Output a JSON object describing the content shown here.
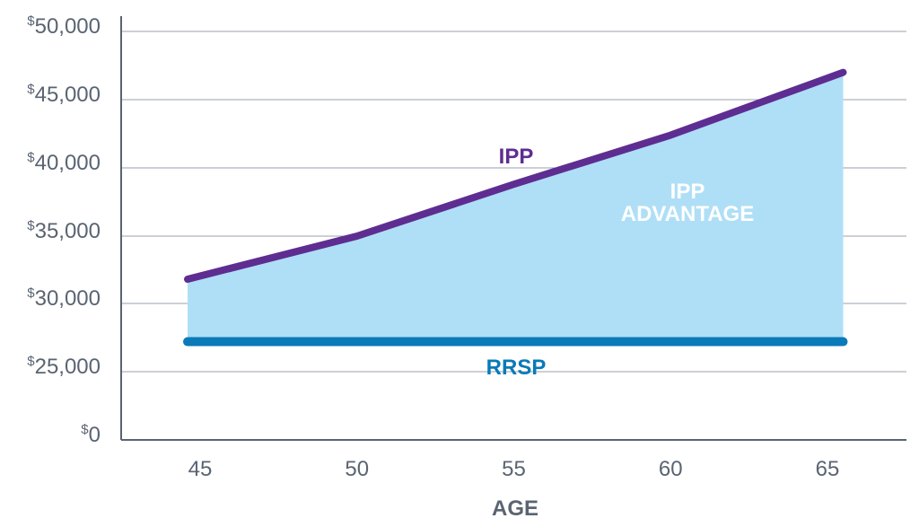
{
  "chart_data": {
    "type": "area",
    "xlabel": "AGE",
    "ylabel": "",
    "title": "",
    "x_ticks": [
      45,
      50,
      55,
      60,
      65
    ],
    "y_ticks": [
      {
        "value": 0,
        "label": "0"
      },
      {
        "value": 25000,
        "label": "25,000"
      },
      {
        "value": 30000,
        "label": "30,000"
      },
      {
        "value": 35000,
        "label": "35,000"
      },
      {
        "value": 40000,
        "label": "40,000"
      },
      {
        "value": 45000,
        "label": "45,000"
      },
      {
        "value": 50000,
        "label": "50,000"
      }
    ],
    "currency_symbol": "$",
    "grid": true,
    "series": [
      {
        "name": "IPP",
        "color": "#5e2d91",
        "points": [
          [
            44.6,
            31800
          ],
          [
            50,
            35000
          ],
          [
            55,
            38800
          ],
          [
            60,
            42400
          ],
          [
            65.5,
            47000
          ]
        ]
      },
      {
        "name": "RRSP",
        "color": "#0a7ab8",
        "points": [
          [
            44.6,
            27200
          ],
          [
            65.5,
            27200
          ]
        ]
      }
    ],
    "area": {
      "label": [
        "IPP",
        "ADVANTAGE"
      ],
      "label_color": "#ffffff",
      "fill_color": "#afdff6"
    }
  }
}
